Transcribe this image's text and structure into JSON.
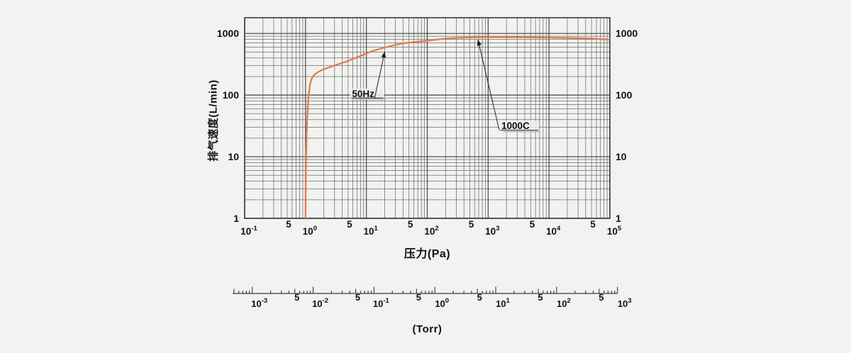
{
  "page": {
    "background": "#f2f2f1"
  },
  "chart_data": {
    "type": "line",
    "title": "",
    "x_axis": {
      "label": "压力(Pa)",
      "scale": "log",
      "min": 0.1,
      "max": 100000,
      "decade_base": "10",
      "decade_exponents": [
        -1,
        0,
        1,
        2,
        3,
        4,
        5
      ],
      "intermediate_tick_label": "5",
      "grid": "on"
    },
    "y_axis": {
      "label": "排气速度(L/min)",
      "scale": "log",
      "min": 1,
      "max": 1800,
      "tick_values": [
        1,
        10,
        100,
        1000
      ],
      "tick_labels": [
        "1",
        "10",
        "100",
        "1000"
      ],
      "mirrored_right": true,
      "grid": "on"
    },
    "secondary_x_axis": {
      "label": "(Torr)",
      "scale": "log",
      "decade_base": "10",
      "decade_exponents": [
        -3,
        -2,
        -1,
        0,
        1,
        2,
        3
      ],
      "intermediate_tick_label": "5",
      "pa_per_torr": 133.322
    },
    "grid_colors": {
      "major": "#424242",
      "minor": "#6e6e6e",
      "border": "#2e2e2e"
    },
    "series": [
      {
        "name": "1000C",
        "condition": "50Hz",
        "color": "#e8764a",
        "points_pa_lmin": [
          [
            1.0,
            1
          ],
          [
            1.005,
            2.5
          ],
          [
            1.01,
            5
          ],
          [
            1.02,
            10
          ],
          [
            1.04,
            22
          ],
          [
            1.06,
            40
          ],
          [
            1.09,
            68
          ],
          [
            1.13,
            105
          ],
          [
            1.18,
            148
          ],
          [
            1.26,
            185
          ],
          [
            1.38,
            212
          ],
          [
            1.55,
            232
          ],
          [
            1.8,
            252
          ],
          [
            2.2,
            272
          ],
          [
            2.8,
            296
          ],
          [
            3.6,
            322
          ],
          [
            4.6,
            348
          ],
          [
            6,
            385
          ],
          [
            8,
            432
          ],
          [
            10,
            472
          ],
          [
            13,
            525
          ],
          [
            17,
            565
          ],
          [
            22,
            605
          ],
          [
            30,
            652
          ],
          [
            42,
            695
          ],
          [
            60,
            725
          ],
          [
            85,
            748
          ],
          [
            100,
            760
          ],
          [
            140,
            795
          ],
          [
            200,
            825
          ],
          [
            300,
            848
          ],
          [
            500,
            862
          ],
          [
            800,
            870
          ],
          [
            1500,
            872
          ],
          [
            3000,
            868
          ],
          [
            6000,
            862
          ],
          [
            10000,
            856
          ],
          [
            20000,
            846
          ],
          [
            50000,
            826
          ],
          [
            100000,
            792
          ]
        ]
      }
    ],
    "annotations": [
      {
        "label": "50Hz",
        "label_at_pa_lmin": [
          5.8,
          93
        ],
        "tip_at_pa_lmin": [
          20,
          505
        ]
      },
      {
        "label": "1000C",
        "label_at_pa_lmin": [
          1650,
          28
        ],
        "tip_at_pa_lmin": [
          680,
          790
        ]
      }
    ]
  }
}
